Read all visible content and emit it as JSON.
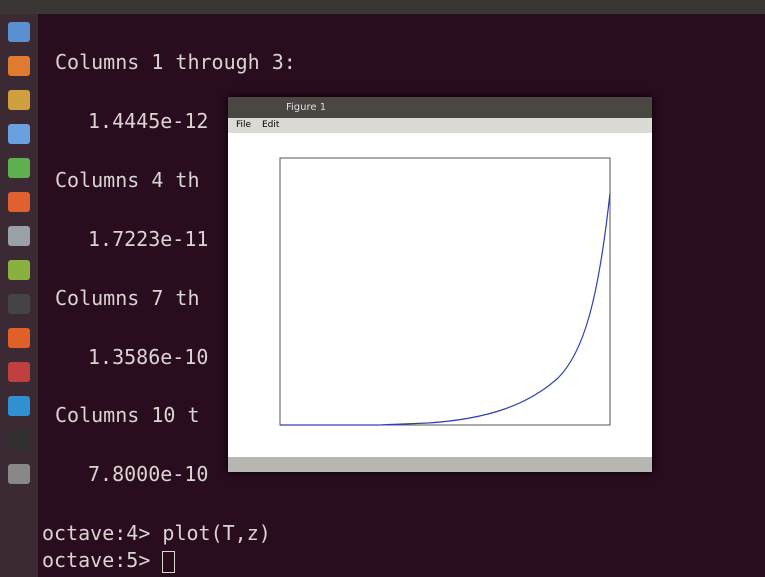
{
  "terminal": {
    "lines": [
      "Columns 1 through 3:",
      "1.4445e-12",
      "Columns 4 th",
      "1.7223e-11",
      "Columns 7 th",
      "1.3586e-10",
      "Columns 10 t",
      "7.8000e-10"
    ],
    "prompts": [
      "octave:4> plot(T,z)",
      "octave:5> "
    ]
  },
  "figure_window": {
    "title": "Figure 1",
    "menu": [
      "File",
      "Edit"
    ]
  }
}
